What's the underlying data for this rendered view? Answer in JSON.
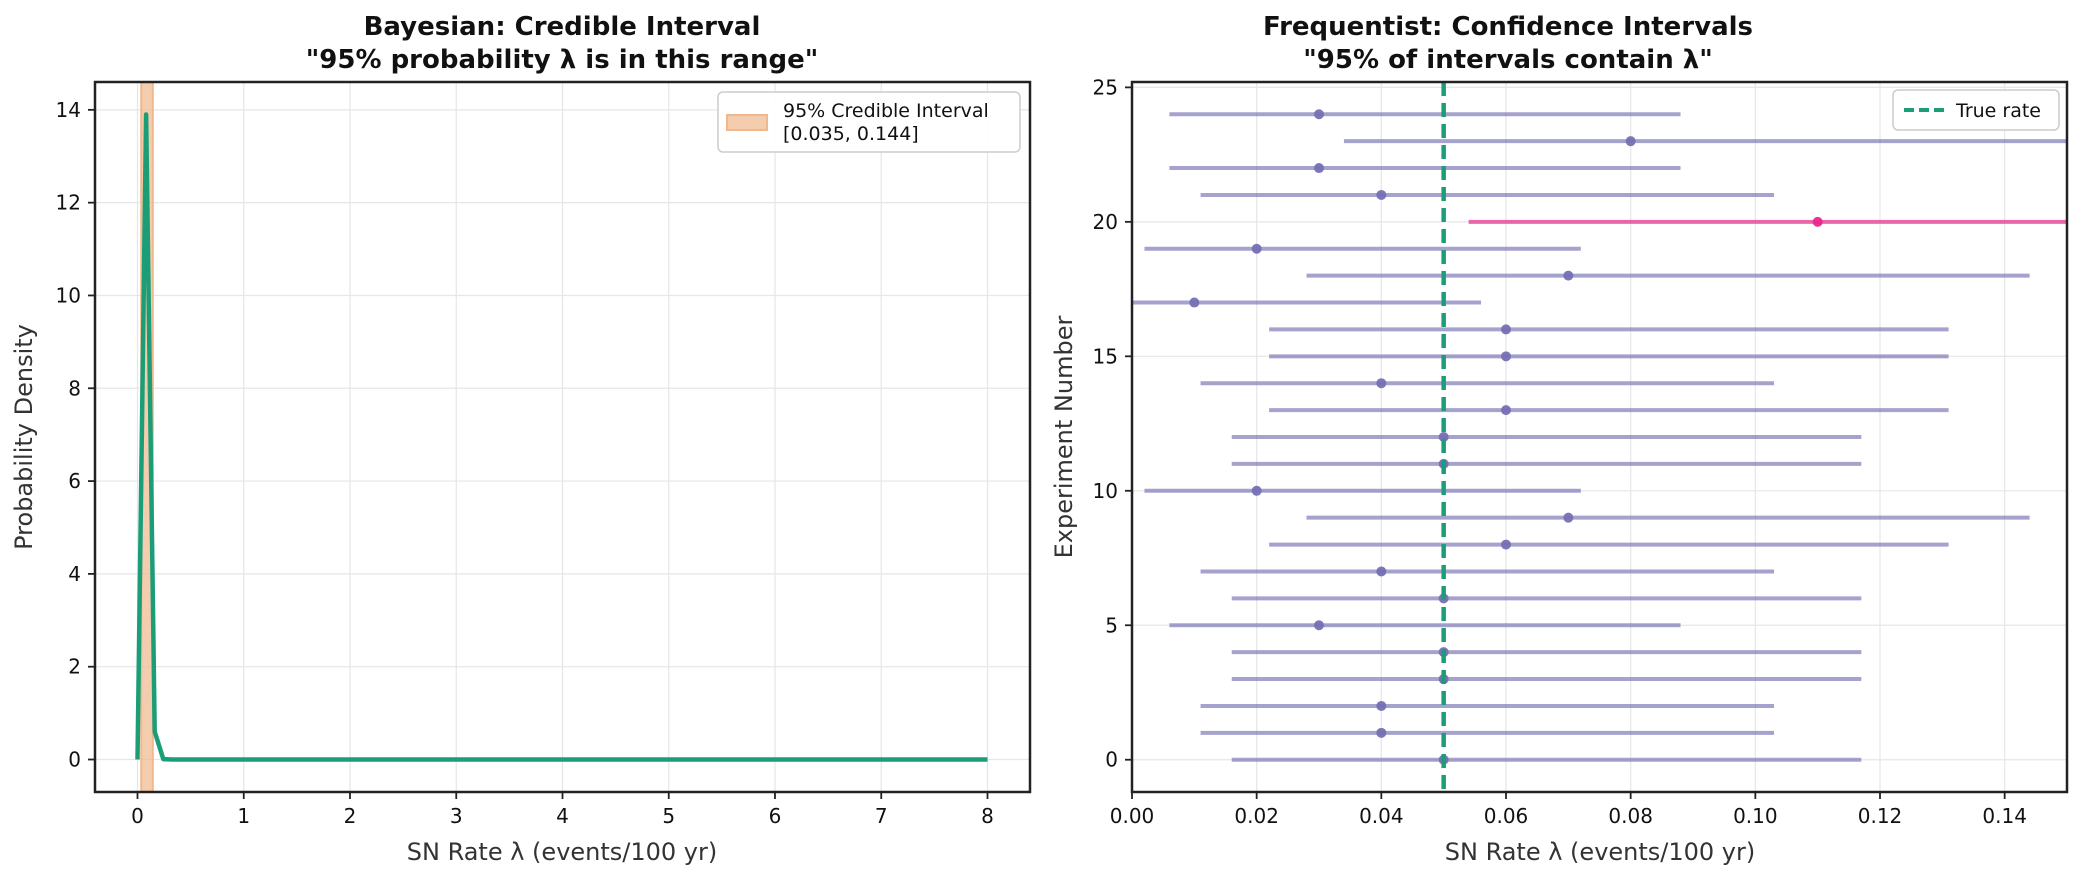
{
  "chart_data": [
    {
      "type": "line",
      "title_line1": "Bayesian: Credible Interval",
      "title_line2": "\"95% probability λ is in this range\"",
      "xlabel": "SN Rate λ (events/100 yr)",
      "ylabel": "Probability Density",
      "xlim": [
        -0.4,
        8.4
      ],
      "ylim": [
        -0.7,
        14.6
      ],
      "xticks": [
        0,
        1,
        2,
        3,
        4,
        5,
        6,
        7,
        8
      ],
      "yticks": [
        0,
        2,
        4,
        6,
        8,
        10,
        12,
        14
      ],
      "grid": true,
      "credible_interval": {
        "low": 0.035,
        "high": 0.144,
        "color": "#f0b88c"
      },
      "legend": {
        "line1": "95% Credible Interval",
        "line2": "[0.035, 0.144]",
        "placement": "top-right"
      },
      "series": [
        {
          "name": "posterior",
          "color": "#1b9e77",
          "x": [
            0,
            0.0808,
            0.1616,
            0.2424,
            0.3232,
            0.5,
            1,
            2,
            3,
            4,
            5,
            6,
            7,
            8
          ],
          "y": [
            0,
            13.9,
            0.6,
            0.01,
            0,
            0,
            0,
            0,
            0,
            0,
            0,
            0,
            0,
            0
          ]
        }
      ]
    },
    {
      "type": "errorbar",
      "title_line1": "Frequentist: Confidence Intervals",
      "title_line2": "\"95% of intervals contain λ\"",
      "xlabel": "SN Rate λ (events/100 yr)",
      "ylabel": "Experiment Number",
      "xlim": [
        0,
        0.15
      ],
      "ylim": [
        -1.2,
        25.2
      ],
      "xticks": [
        "0.00",
        "0.02",
        "0.04",
        "0.06",
        "0.08",
        "0.10",
        "0.12",
        "0.14"
      ],
      "yticks": [
        0,
        5,
        10,
        15,
        20,
        25
      ],
      "grid": true,
      "true_rate": 0.05,
      "true_rate_color": "#1b9e77",
      "legend": {
        "label": "True rate",
        "placement": "top-right"
      },
      "contains_color": "#7570b3",
      "misses_color": "#e7298a",
      "experiments": [
        {
          "n": 0,
          "estimate": 0.05,
          "low": 0.016,
          "high": 0.117
        },
        {
          "n": 1,
          "estimate": 0.04,
          "low": 0.011,
          "high": 0.103
        },
        {
          "n": 2,
          "estimate": 0.04,
          "low": 0.011,
          "high": 0.103
        },
        {
          "n": 3,
          "estimate": 0.05,
          "low": 0.016,
          "high": 0.117
        },
        {
          "n": 4,
          "estimate": 0.05,
          "low": 0.016,
          "high": 0.117
        },
        {
          "n": 5,
          "estimate": 0.03,
          "low": 0.006,
          "high": 0.088
        },
        {
          "n": 6,
          "estimate": 0.05,
          "low": 0.016,
          "high": 0.117
        },
        {
          "n": 7,
          "estimate": 0.04,
          "low": 0.011,
          "high": 0.103
        },
        {
          "n": 8,
          "estimate": 0.06,
          "low": 0.022,
          "high": 0.131
        },
        {
          "n": 9,
          "estimate": 0.07,
          "low": 0.028,
          "high": 0.144
        },
        {
          "n": 10,
          "estimate": 0.02,
          "low": 0.002,
          "high": 0.072
        },
        {
          "n": 11,
          "estimate": 0.05,
          "low": 0.016,
          "high": 0.117
        },
        {
          "n": 12,
          "estimate": 0.05,
          "low": 0.016,
          "high": 0.117
        },
        {
          "n": 13,
          "estimate": 0.06,
          "low": 0.022,
          "high": 0.131
        },
        {
          "n": 14,
          "estimate": 0.04,
          "low": 0.011,
          "high": 0.103
        },
        {
          "n": 15,
          "estimate": 0.06,
          "low": 0.022,
          "high": 0.131
        },
        {
          "n": 16,
          "estimate": 0.06,
          "low": 0.022,
          "high": 0.131
        },
        {
          "n": 17,
          "estimate": 0.01,
          "low": 0.0,
          "high": 0.056
        },
        {
          "n": 18,
          "estimate": 0.07,
          "low": 0.028,
          "high": 0.144
        },
        {
          "n": 19,
          "estimate": 0.02,
          "low": 0.002,
          "high": 0.072
        },
        {
          "n": 20,
          "estimate": 0.11,
          "low": 0.054,
          "high": 0.197
        },
        {
          "n": 21,
          "estimate": 0.04,
          "low": 0.011,
          "high": 0.103
        },
        {
          "n": 22,
          "estimate": 0.03,
          "low": 0.006,
          "high": 0.088
        },
        {
          "n": 23,
          "estimate": 0.08,
          "low": 0.034,
          "high": 0.158
        },
        {
          "n": 24,
          "estimate": 0.03,
          "low": 0.006,
          "high": 0.088
        }
      ]
    }
  ]
}
